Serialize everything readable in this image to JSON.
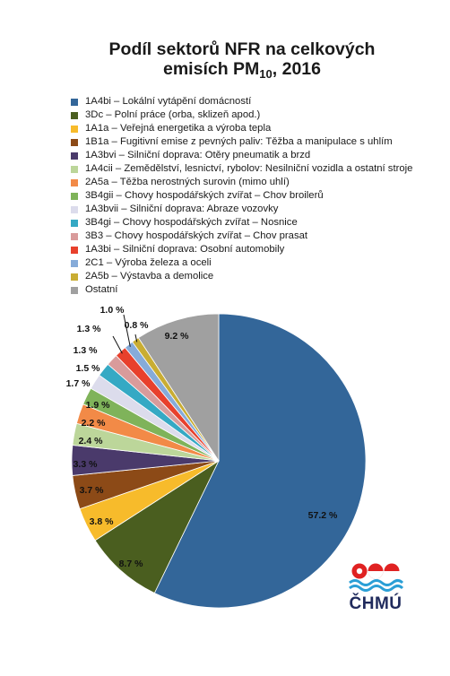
{
  "title_line1": "Podíl sektorů NFR na celkových",
  "title_line2_pre": "emisích PM",
  "title_sub": "10",
  "title_line2_post": ", 2016",
  "logo_text": "ČHMÚ",
  "chart_data": {
    "type": "pie",
    "title": "Podíl sektorů NFR na celkových emisích PM10, 2016",
    "legend_position": "top",
    "slices": [
      {
        "label": "1A4bi – Lokální vytápění domácností",
        "value": 57.2,
        "value_label": "57.2 %",
        "color": "#336699"
      },
      {
        "label": "3Dc – Polní práce (orba, sklizeň apod.)",
        "value": 8.7,
        "value_label": "8.7 %",
        "color": "#4a5e1f"
      },
      {
        "label": "1A1a – Veřejná energetika a výroba tepla",
        "value": 3.8,
        "value_label": "3.8 %",
        "color": "#f7bb2b"
      },
      {
        "label": "1B1a – Fugitivní emise z pevných paliv: Těžba a manipulace s uhlím",
        "value": 3.7,
        "value_label": "3.7 %",
        "color": "#8c4a17"
      },
      {
        "label": "1A3bvi – Silniční doprava: Otěry pneumatik a brzd",
        "value": 3.3,
        "value_label": "3.3 %",
        "color": "#4a3a6b"
      },
      {
        "label": "1A4cii – Zemědělství, lesnictví, rybolov: Nesilniční vozidla a ostatní stroje",
        "value": 2.4,
        "value_label": "2.4 %",
        "color": "#bcd69a"
      },
      {
        "label": "2A5a – Těžba nerostných surovin (mimo uhlí)",
        "value": 2.2,
        "value_label": "2.2 %",
        "color": "#f28a47"
      },
      {
        "label": "3B4gii – Chovy hospodářských zvířat – Chov broilerů",
        "value": 1.9,
        "value_label": "1.9 %",
        "color": "#7fb35a"
      },
      {
        "label": "1A3bvii – Silniční doprava: Abraze vozovky",
        "value": 1.7,
        "value_label": "1.7 %",
        "color": "#dcdcec"
      },
      {
        "label": "3B4gi – Chovy hospodářských zvířat – Nosnice",
        "value": 1.5,
        "value_label": "1.5 %",
        "color": "#35a9c4"
      },
      {
        "label": "3B3 – Chovy hospodářských zvířat – Chov prasat",
        "value": 1.3,
        "value_label": "1.3 %",
        "color": "#d99b9b"
      },
      {
        "label": "1A3bi – Silniční doprava: Osobní automobily",
        "value": 1.3,
        "value_label": "1.3 %",
        "color": "#e8402c"
      },
      {
        "label": "2C1 – Výroba železa a oceli",
        "value": 1.0,
        "value_label": "1.0 %",
        "color": "#86abd9"
      },
      {
        "label": "2A5b – Výstavba a demolice",
        "value": 0.8,
        "value_label": "0.8 %",
        "color": "#c9ad33"
      },
      {
        "label": "Ostatní",
        "value": 9.2,
        "value_label": "9.2 %",
        "color": "#a0a0a0"
      }
    ]
  }
}
